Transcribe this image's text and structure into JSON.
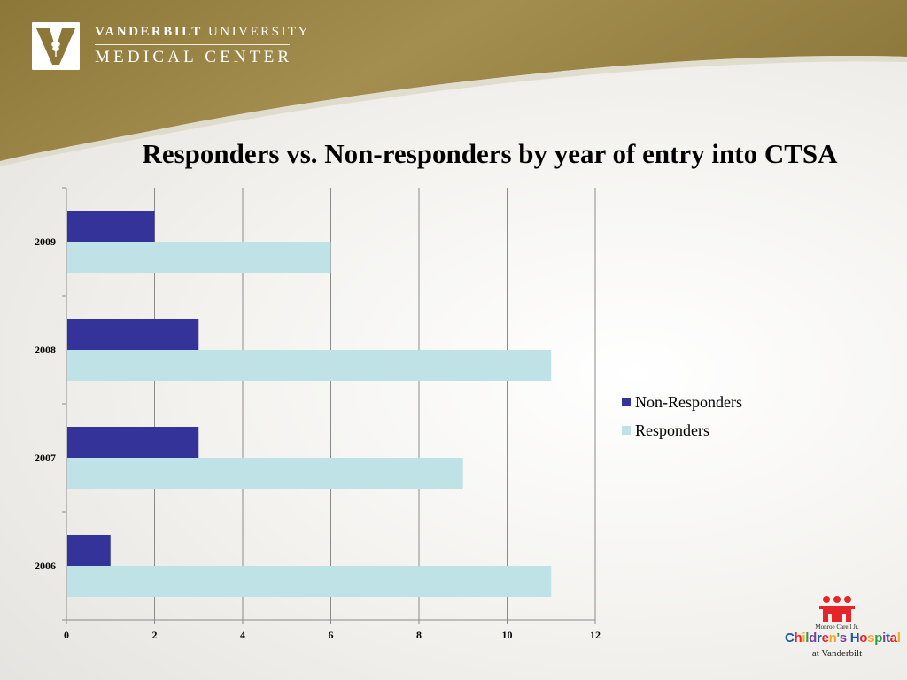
{
  "header": {
    "logo_line1_bold": "VANDERBILT",
    "logo_line1_rest": " UNIVERSITY",
    "logo_line2": "MEDICAL CENTER",
    "colors": {
      "banner_gold": "#9a8545",
      "banner_dark": "#7d6a30"
    }
  },
  "footer_logo": {
    "line1": "Monroe Carell Jr.",
    "line2": "Children's Hospital",
    "line3": "at Vanderbilt",
    "colors": {
      "red": "#e4262b",
      "blue": "#1b5aa6"
    }
  },
  "chart_data": {
    "type": "bar",
    "orientation": "horizontal",
    "title": "Responders vs. Non-responders by year of entry into CTSA",
    "categories": [
      "2009",
      "2008",
      "2007",
      "2006"
    ],
    "series": [
      {
        "name": "Non-Responders",
        "color": "#333399",
        "values": [
          2,
          3,
          3,
          1
        ]
      },
      {
        "name": "Responders",
        "color": "#bfe2e6",
        "values": [
          6,
          11,
          9,
          11
        ]
      }
    ],
    "xlim": [
      0,
      12
    ],
    "xticks": [
      "0",
      "2",
      "4",
      "6",
      "8",
      "10",
      "12"
    ],
    "grid": true,
    "legend": "right"
  }
}
